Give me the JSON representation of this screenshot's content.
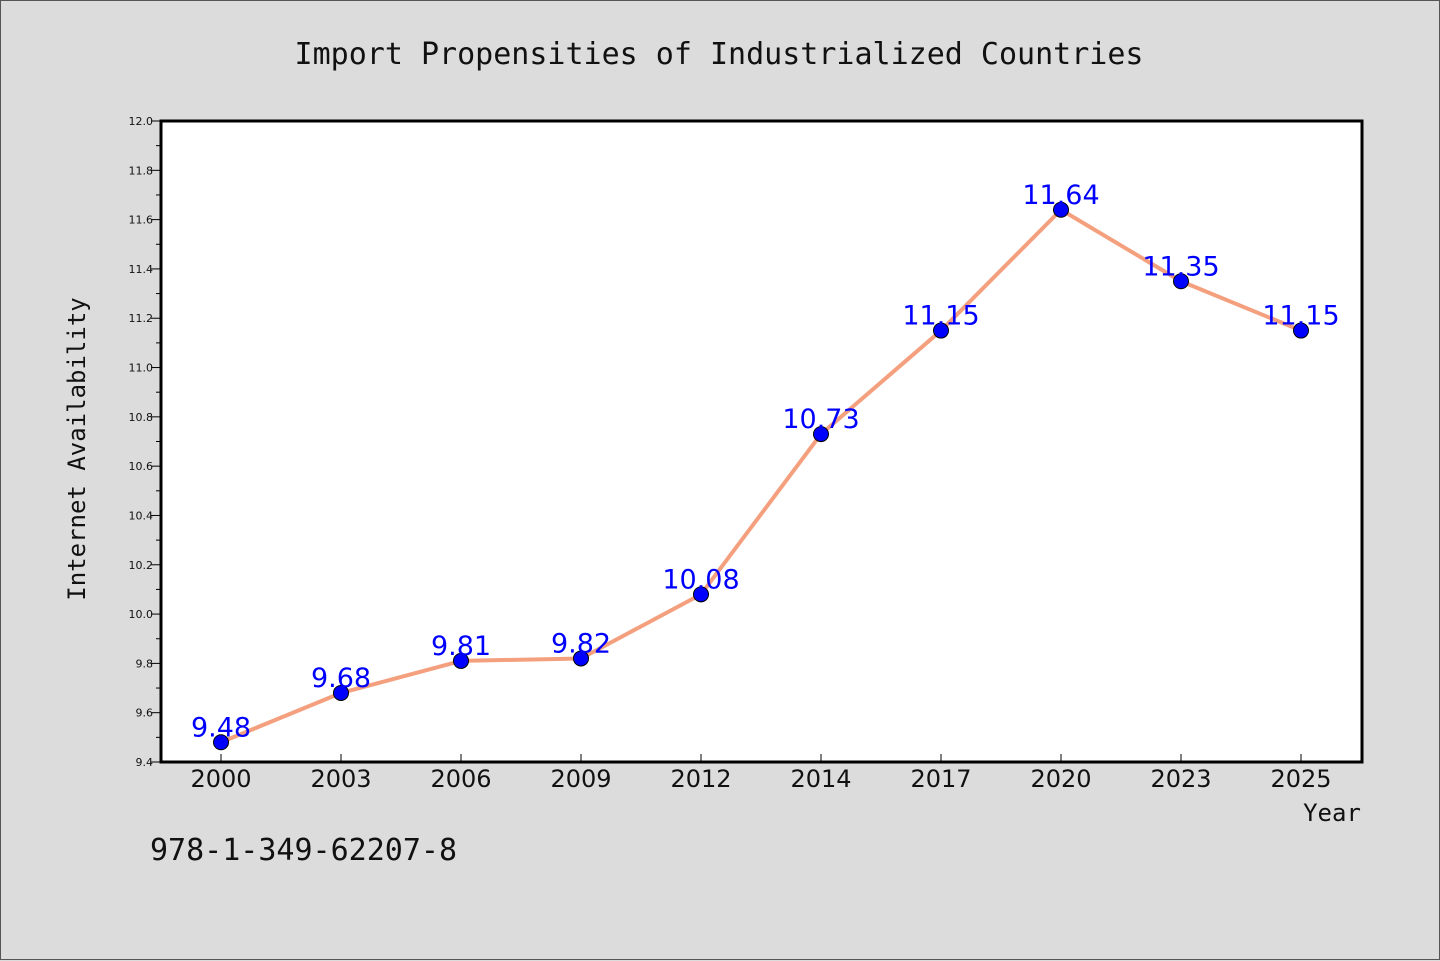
{
  "chart_data": {
    "type": "line",
    "title": "Import Propensities of Industrialized Countries",
    "xlabel": "Year",
    "ylabel": "Internet Availability",
    "categories": [
      "2000",
      "2003",
      "2006",
      "2009",
      "2012",
      "2014",
      "2017",
      "2020",
      "2023",
      "2025"
    ],
    "values": [
      9.48,
      9.68,
      9.81,
      9.82,
      10.08,
      10.73,
      11.15,
      11.64,
      11.35,
      11.15
    ],
    "data_labels": [
      "9.48",
      "9.68",
      "9.81",
      "9.82",
      "10.08",
      "10.73",
      "11.15",
      "11.64",
      "11.35",
      "11.15"
    ],
    "ylim": [
      9.4,
      12.0
    ],
    "yticks": [
      "9.4",
      "9.6",
      "9.8",
      "10.0",
      "10.2",
      "10.4",
      "10.6",
      "10.8",
      "11.0",
      "11.2",
      "11.4",
      "11.6",
      "11.8",
      "12.0"
    ],
    "grid": false,
    "line_color": "#f4a07e",
    "marker_color": "#0000ff",
    "label_color": "#0000ff"
  },
  "footer": {
    "isbn": "978-1-349-62207-8"
  }
}
